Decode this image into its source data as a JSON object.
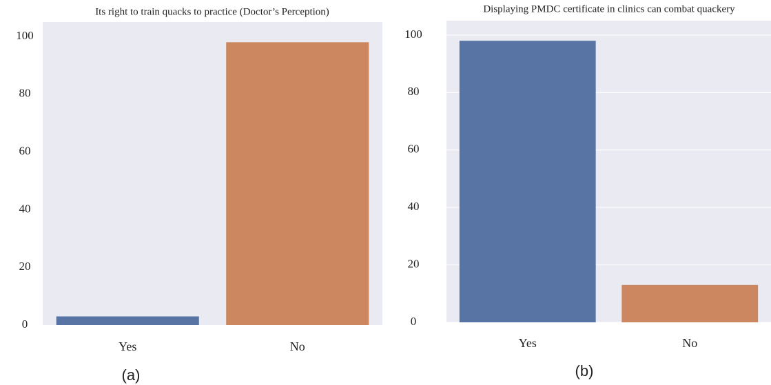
{
  "chart_data": [
    {
      "type": "bar",
      "title": "Its right to train quacks to practice (Doctor’s Perception)",
      "categories": [
        "Yes",
        "No"
      ],
      "values": [
        3,
        98
      ],
      "colors": [
        "#5874a5",
        "#cc8660"
      ],
      "ylim": [
        0,
        105
      ],
      "yticks": [
        0,
        20,
        40,
        60,
        80,
        100
      ],
      "grid": false,
      "caption": "(a)"
    },
    {
      "type": "bar",
      "title": "Displaying PMDC certificate  in clinics can combat quackery",
      "categories": [
        "Yes",
        "No"
      ],
      "values": [
        98,
        13
      ],
      "colors": [
        "#5874a5",
        "#cc8660"
      ],
      "ylim": [
        0,
        105
      ],
      "yticks": [
        0,
        20,
        40,
        60,
        80,
        100
      ],
      "grid": true,
      "caption": "(b)"
    }
  ]
}
